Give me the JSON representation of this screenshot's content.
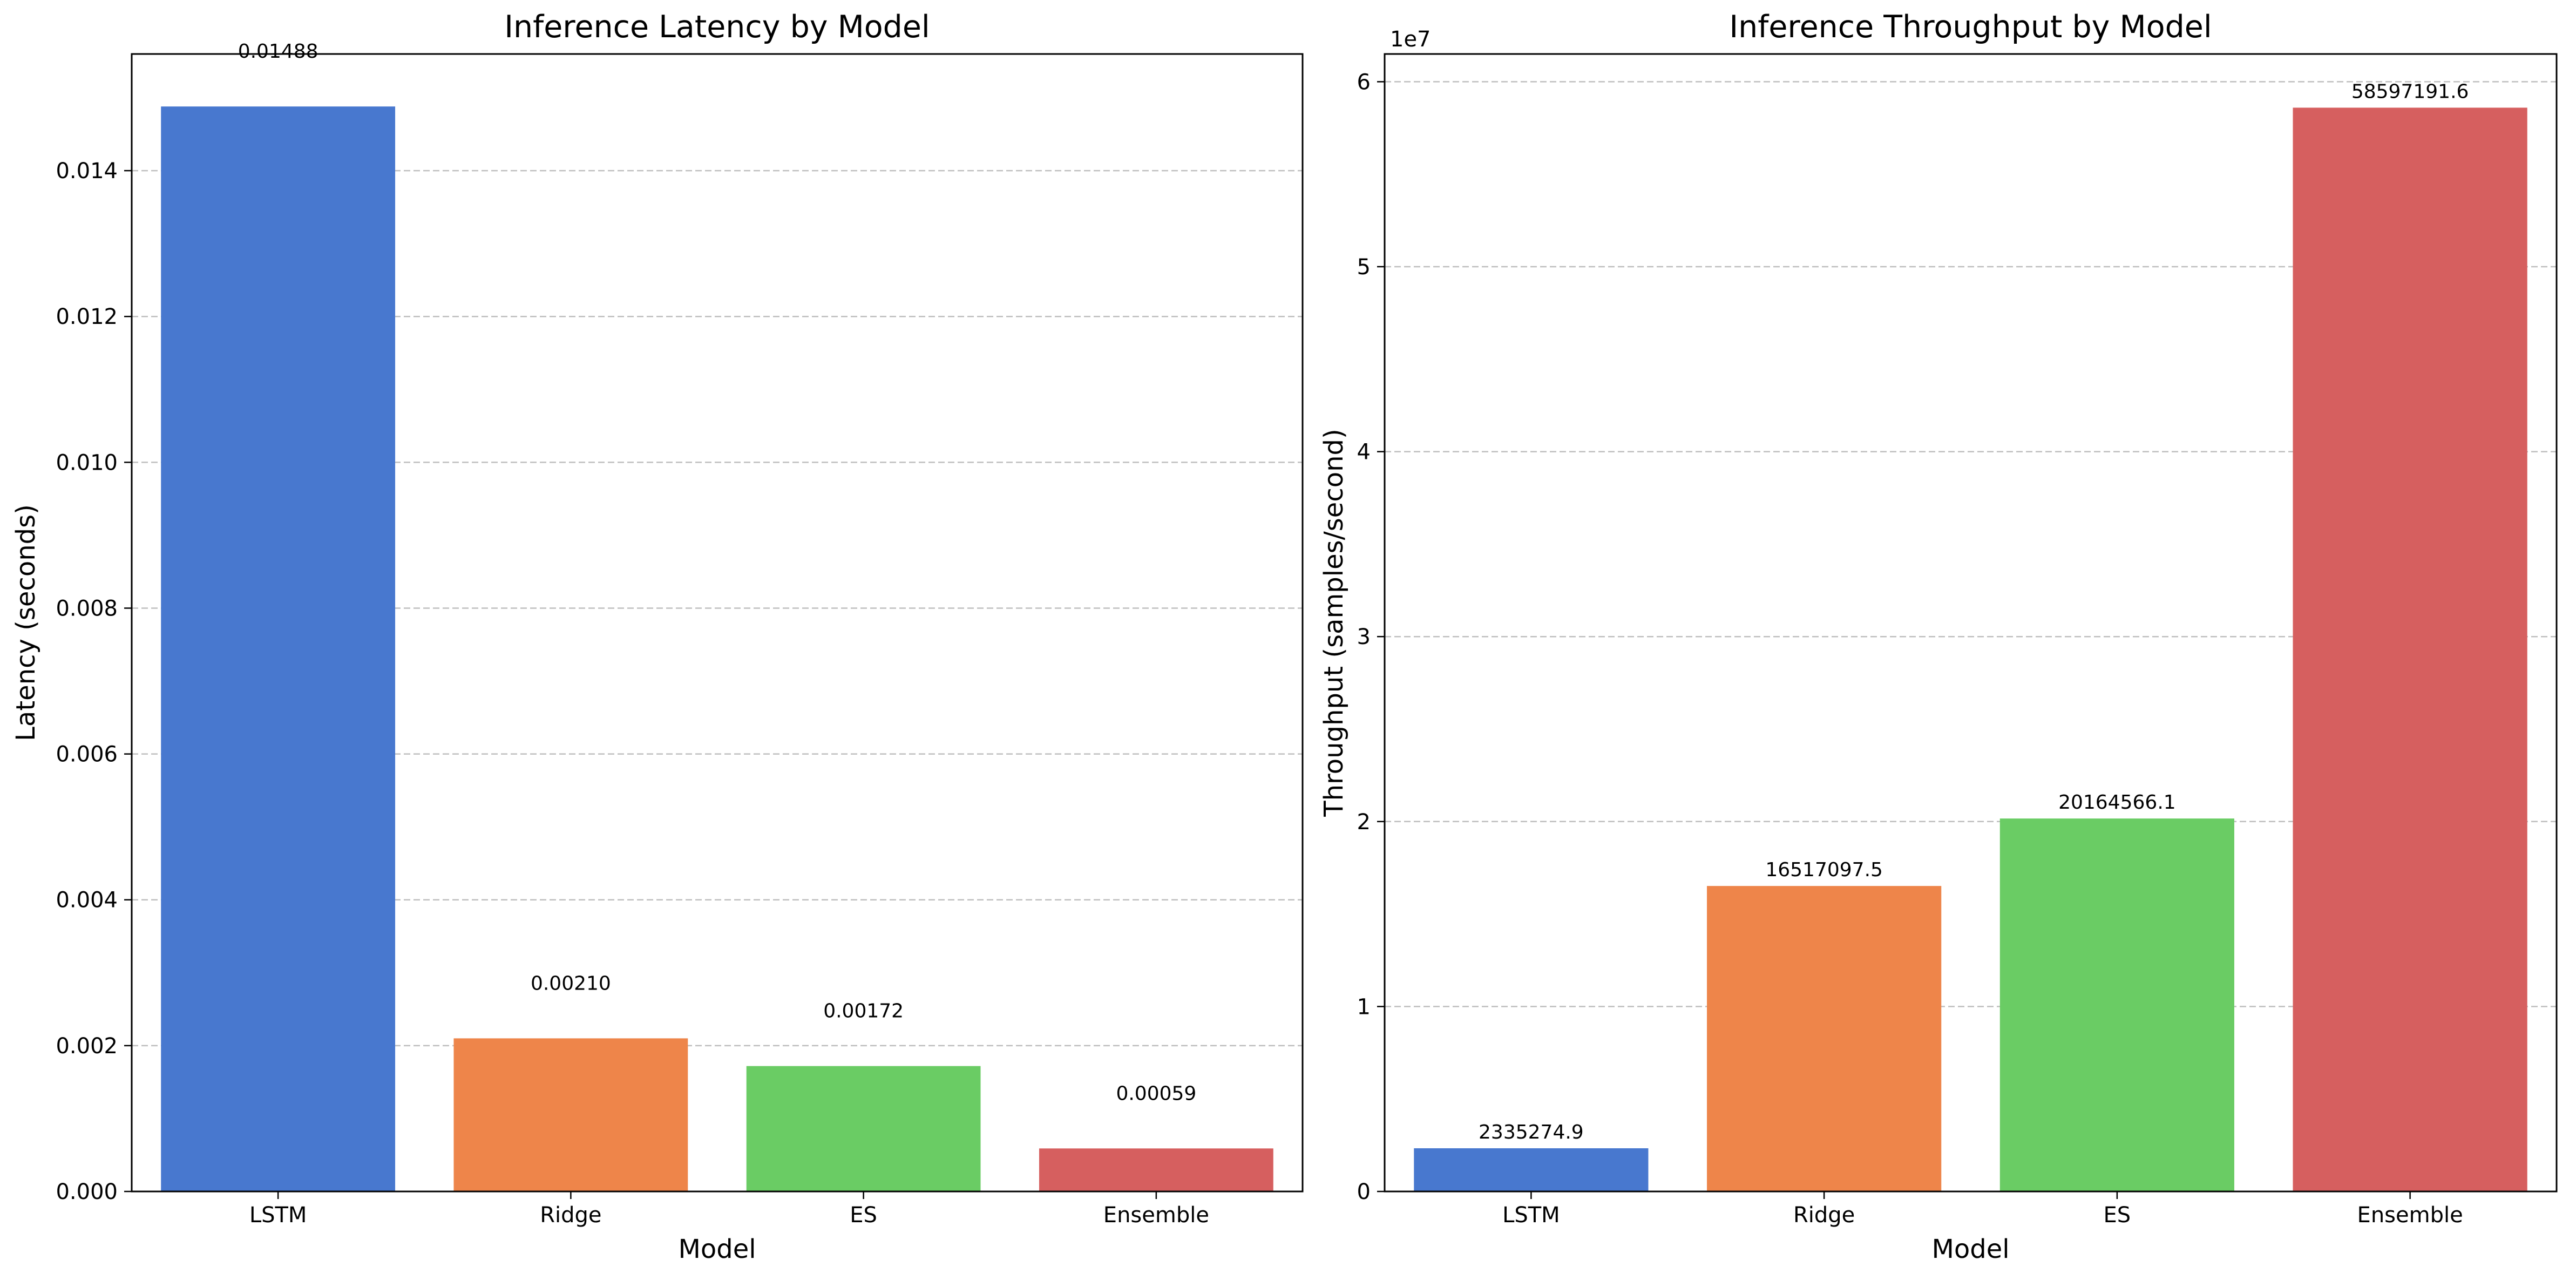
{
  "chart_data": [
    {
      "type": "bar",
      "title": "Inference Latency by Model",
      "xlabel": "Model",
      "ylabel": "Latency (seconds)",
      "categories": [
        "LSTM",
        "Ridge",
        "ES",
        "Ensemble"
      ],
      "values": [
        0.01488,
        0.0021,
        0.00172,
        0.00059
      ],
      "value_labels": [
        "0.01488",
        "0.00210",
        "0.00172",
        "0.00059"
      ],
      "ylim": [
        0,
        0.0156
      ],
      "yticks": [
        0.0,
        0.002,
        0.004,
        0.006,
        0.008,
        0.01,
        0.012,
        0.014
      ],
      "ytick_labels": [
        "0.000",
        "0.002",
        "0.004",
        "0.006",
        "0.008",
        "0.010",
        "0.012",
        "0.014"
      ],
      "colors": [
        "#4878cf",
        "#ee854a",
        "#6acc64",
        "#d65f5f"
      ],
      "grid": "y-dashed",
      "legend": "none"
    },
    {
      "type": "bar",
      "title": "Inference Throughput by Model",
      "xlabel": "Model",
      "ylabel": "Throughput (samples/second)",
      "categories": [
        "LSTM",
        "Ridge",
        "ES",
        "Ensemble"
      ],
      "values": [
        2335274.9,
        16517097.5,
        20164566.1,
        58597191.6
      ],
      "value_labels": [
        "2335274.9",
        "16517097.5",
        "20164566.1",
        "58597191.6"
      ],
      "ylim": [
        0,
        61500000
      ],
      "yticks": [
        0,
        10000000,
        20000000,
        30000000,
        40000000,
        50000000,
        60000000
      ],
      "ytick_labels": [
        "0",
        "1",
        "2",
        "3",
        "4",
        "5",
        "6"
      ],
      "offset_text": "1e7",
      "colors": [
        "#4878cf",
        "#ee854a",
        "#6acc64",
        "#d65f5f"
      ],
      "grid": "y-dashed",
      "legend": "none"
    }
  ]
}
